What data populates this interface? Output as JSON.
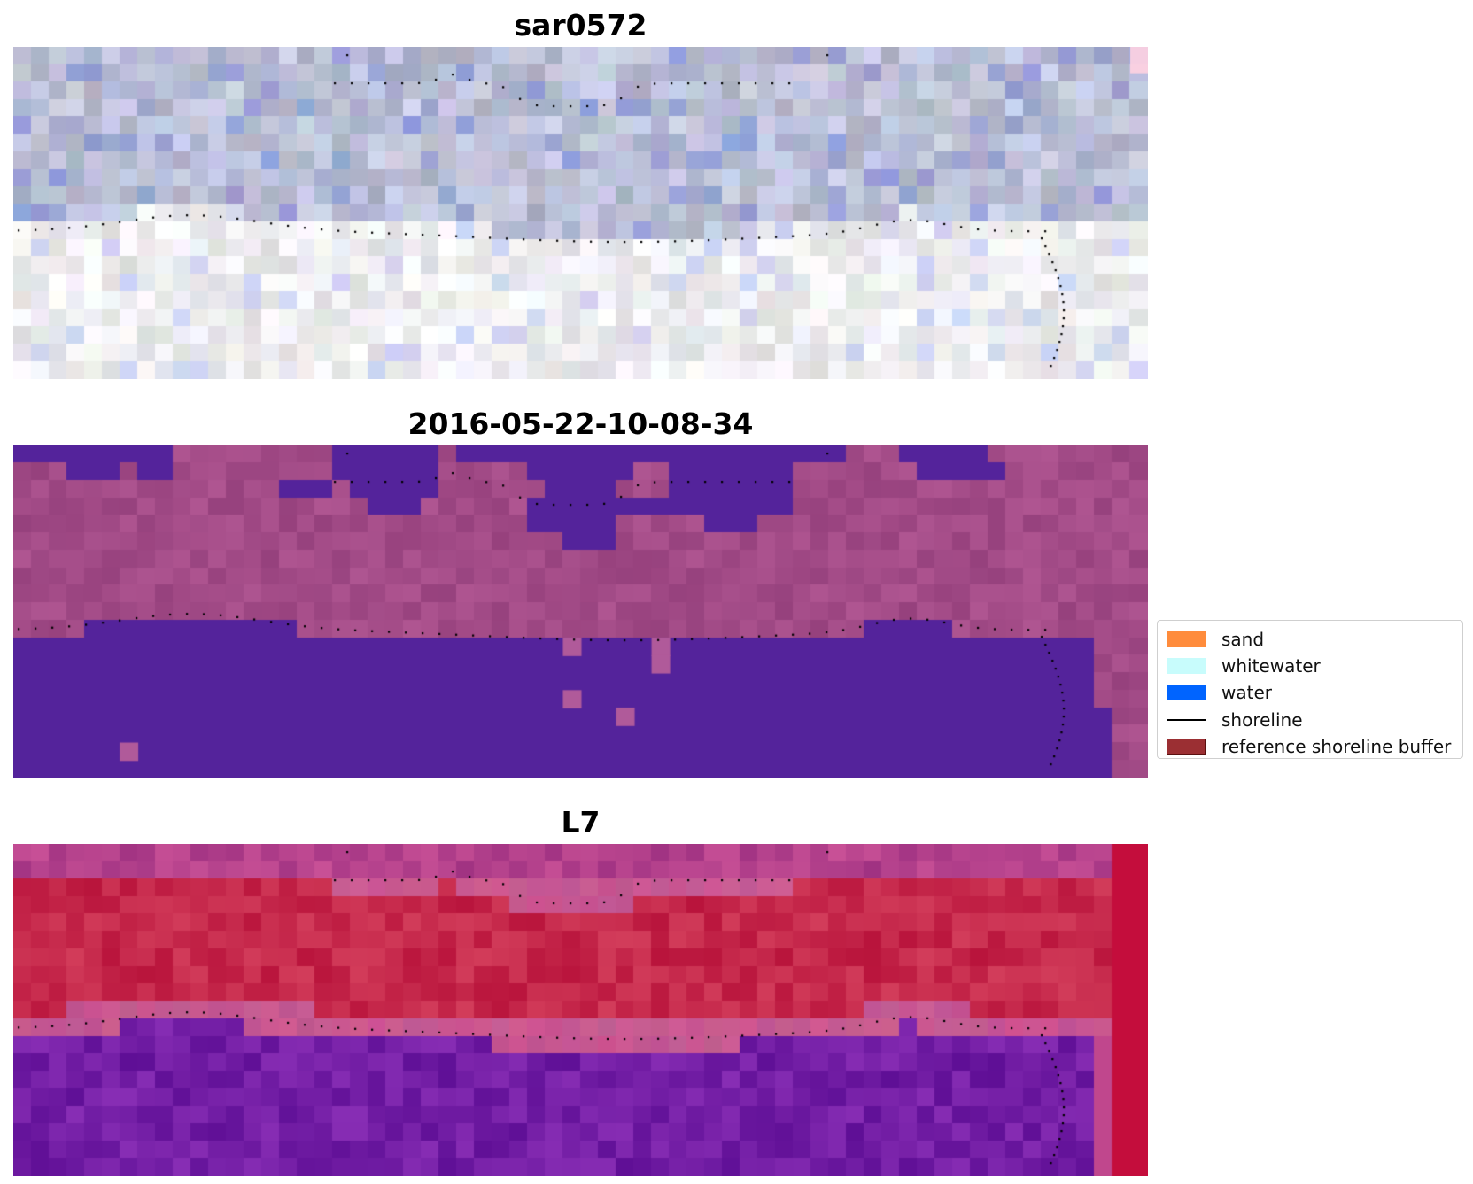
{
  "panels": [
    {
      "title": "sar0572",
      "kind": "rgb"
    },
    {
      "title": "2016-05-22-10-08-34",
      "kind": "classified"
    },
    {
      "title": "L7",
      "kind": "index"
    }
  ],
  "legend": {
    "items": [
      {
        "label": "sand",
        "color": "#ff8c3c",
        "type": "patch"
      },
      {
        "label": "whitewater",
        "color": "#c8fcfc",
        "type": "patch"
      },
      {
        "label": "water",
        "color": "#0064ff",
        "type": "patch"
      },
      {
        "label": "shoreline",
        "color": "#000000",
        "type": "line"
      },
      {
        "label": "reference shoreline buffer",
        "color": "#9b2f33",
        "type": "patch-edge"
      }
    ]
  }
}
